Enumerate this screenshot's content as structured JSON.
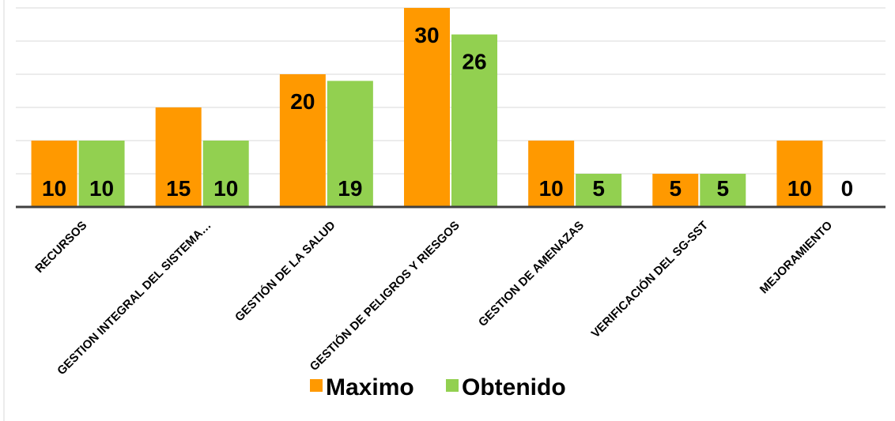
{
  "chart_data": {
    "type": "bar",
    "categories": [
      "RECURSOS",
      "GESTION INTEGRAL DEL SISTEMA…",
      "GESTIÓN DE LA SALUD",
      "GESTIÓN DE PELIGROS Y RIESGOS",
      "GESTION DE AMENAZAS",
      "VERIFICACIÓN DEL SG-SST",
      "MEJORAMIENTO"
    ],
    "series": [
      {
        "name": "Maximo",
        "color": "#FF9900",
        "values": [
          10,
          15,
          20,
          30,
          10,
          5,
          10
        ]
      },
      {
        "name": "Obtenido",
        "color": "#92D050",
        "values": [
          10,
          10,
          19,
          26,
          5,
          5,
          0
        ]
      }
    ],
    "title": "",
    "xlabel": "",
    "ylabel": "",
    "ylim": [
      0,
      30
    ],
    "grid": true,
    "legend_position": "bottom"
  }
}
